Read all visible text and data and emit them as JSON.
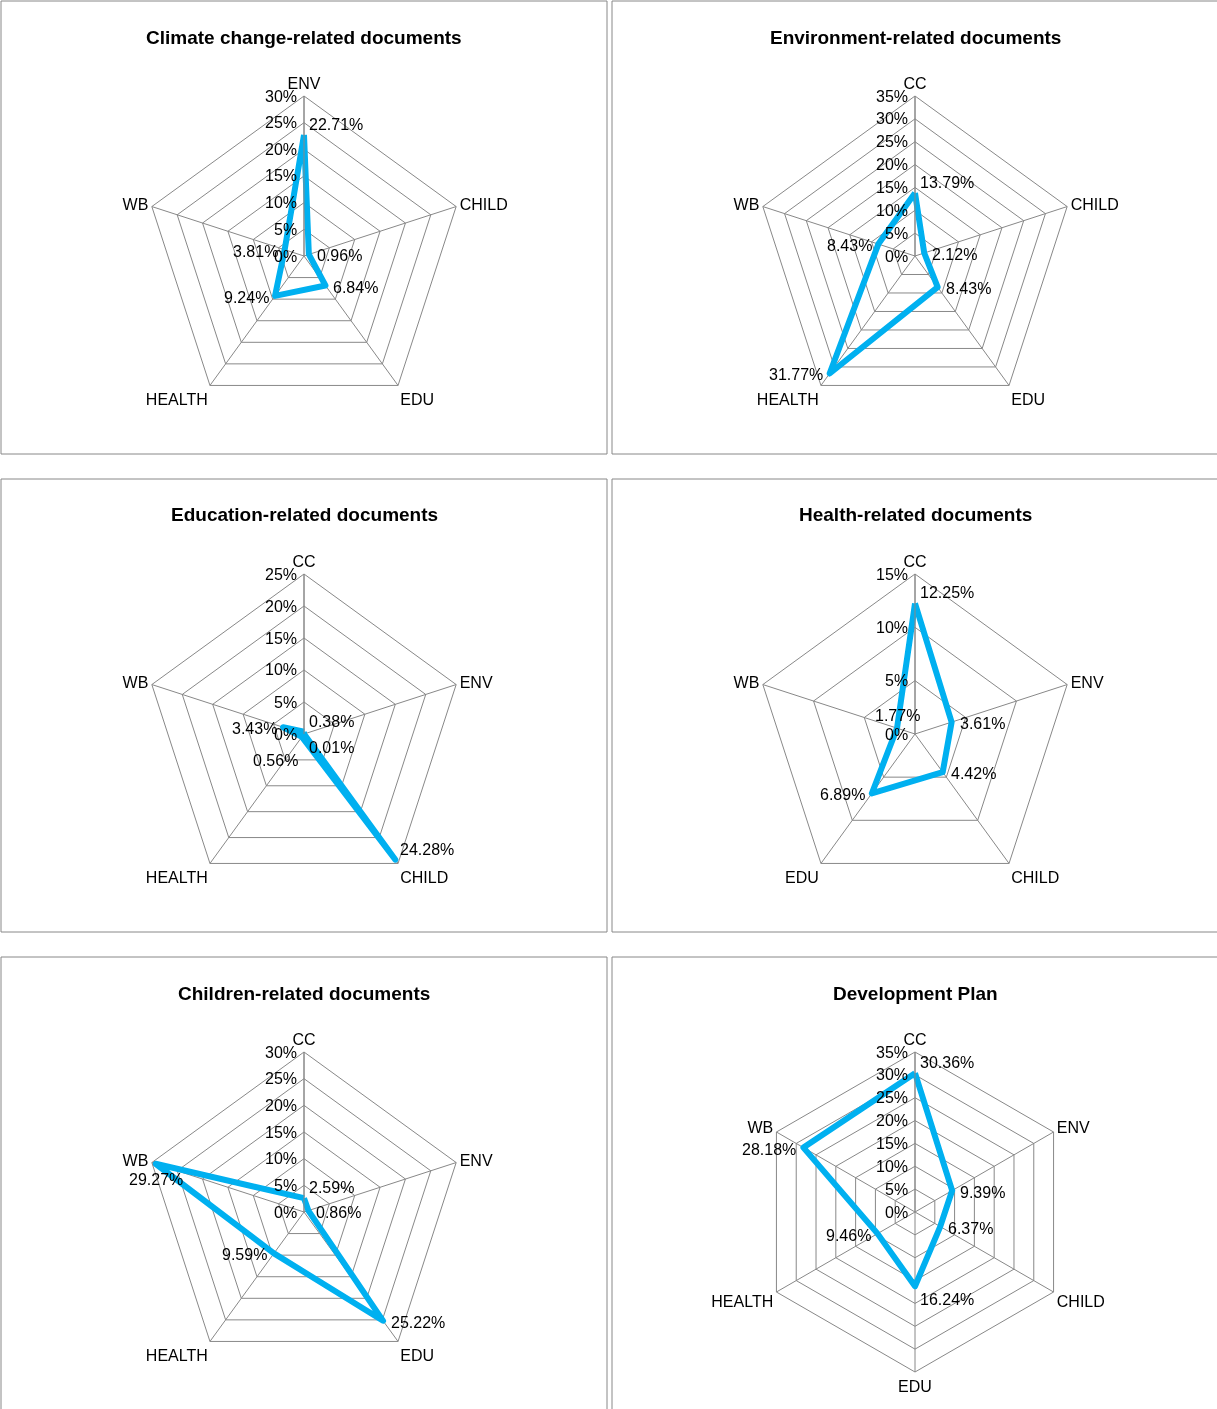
{
  "chart_data": [
    {
      "type": "radar",
      "title": "Climate change-related documents",
      "categories": [
        "ENV",
        "CHILD",
        "EDU",
        "HEALTH",
        "WB"
      ],
      "series": [
        {
          "color": "#00b0f0",
          "values": [
            22.71,
            0.96,
            6.84,
            9.24,
            3.81
          ],
          "value_labels": [
            "22.71%",
            "0.96%",
            "6.84%",
            "9.24%",
            "3.81%"
          ]
        }
      ],
      "ylim": [
        0,
        30
      ],
      "yticks": [
        {
          "value": 0,
          "label": "0%"
        },
        {
          "value": 5,
          "label": "5%"
        },
        {
          "value": 10,
          "label": "10%"
        },
        {
          "value": 15,
          "label": "15%"
        },
        {
          "value": 20,
          "label": "20%"
        },
        {
          "value": 25,
          "label": "25%"
        },
        {
          "value": 30,
          "label": "30%"
        }
      ],
      "grid": true,
      "marker": "none",
      "line_style": "solid"
    },
    {
      "type": "radar",
      "title": "Environment-related documents",
      "categories": [
        "CC",
        "CHILD",
        "EDU",
        "HEALTH",
        "WB"
      ],
      "series": [
        {
          "color": "#00b0f0",
          "values": [
            13.79,
            2.12,
            8.43,
            31.77,
            8.43
          ],
          "value_labels": [
            "13.79%",
            "2.12%",
            "8.43%",
            "31.77%",
            "8.43%"
          ]
        }
      ],
      "ylim": [
        0,
        35
      ],
      "yticks": [
        {
          "value": 0,
          "label": "0%"
        },
        {
          "value": 5,
          "label": "5%"
        },
        {
          "value": 10,
          "label": "10%"
        },
        {
          "value": 15,
          "label": "15%"
        },
        {
          "value": 20,
          "label": "20%"
        },
        {
          "value": 25,
          "label": "25%"
        },
        {
          "value": 30,
          "label": "30%"
        },
        {
          "value": 35,
          "label": "35%"
        }
      ],
      "grid": true,
      "marker": "none",
      "line_style": "solid"
    },
    {
      "type": "radar",
      "title": "Education-related documents",
      "categories": [
        "CC",
        "ENV",
        "CHILD",
        "HEALTH",
        "WB"
      ],
      "series": [
        {
          "color": "#00b0f0",
          "values": [
            0.38,
            0.01,
            24.28,
            0.56,
            3.43
          ],
          "value_labels": [
            "0.38%",
            "0.01%",
            "24.28%",
            "0.56%",
            "3.43%"
          ]
        }
      ],
      "ylim": [
        0,
        25
      ],
      "yticks": [
        {
          "value": 0,
          "label": "0%"
        },
        {
          "value": 5,
          "label": "5%"
        },
        {
          "value": 10,
          "label": "10%"
        },
        {
          "value": 15,
          "label": "15%"
        },
        {
          "value": 20,
          "label": "20%"
        },
        {
          "value": 25,
          "label": "25%"
        }
      ],
      "grid": true,
      "marker": "none",
      "line_style": "solid"
    },
    {
      "type": "radar",
      "title": "Health-related documents",
      "categories": [
        "CC",
        "ENV",
        "CHILD",
        "EDU",
        "WB"
      ],
      "series": [
        {
          "color": "#00b0f0",
          "values": [
            12.25,
            3.61,
            4.42,
            6.89,
            1.77
          ],
          "value_labels": [
            "12.25%",
            "3.61%",
            "4.42%",
            "6.89%",
            "1.77%"
          ]
        }
      ],
      "ylim": [
        0,
        15
      ],
      "yticks": [
        {
          "value": 0,
          "label": "0%"
        },
        {
          "value": 5,
          "label": "5%"
        },
        {
          "value": 10,
          "label": "10%"
        },
        {
          "value": 15,
          "label": "15%"
        }
      ],
      "grid": true,
      "marker": "none",
      "line_style": "solid"
    },
    {
      "type": "radar",
      "title": "Children-related documents",
      "categories": [
        "CC",
        "ENV",
        "EDU",
        "HEALTH",
        "WB"
      ],
      "series": [
        {
          "color": "#00b0f0",
          "values": [
            2.59,
            0.86,
            25.22,
            9.59,
            29.27
          ],
          "value_labels": [
            "2.59%",
            "0.86%",
            "25.22%",
            "9.59%",
            "29.27%"
          ]
        }
      ],
      "ylim": [
        0,
        30
      ],
      "yticks": [
        {
          "value": 0,
          "label": "0%"
        },
        {
          "value": 5,
          "label": "5%"
        },
        {
          "value": 10,
          "label": "10%"
        },
        {
          "value": 15,
          "label": "15%"
        },
        {
          "value": 20,
          "label": "20%"
        },
        {
          "value": 25,
          "label": "25%"
        },
        {
          "value": 30,
          "label": "30%"
        }
      ],
      "grid": true,
      "marker": "none",
      "line_style": "solid"
    },
    {
      "type": "radar",
      "title": "Development Plan",
      "categories": [
        "CC",
        "ENV",
        "CHILD",
        "EDU",
        "HEALTH",
        "WB"
      ],
      "series": [
        {
          "color": "#00b0f0",
          "values": [
            30.36,
            9.39,
            6.37,
            16.24,
            9.46,
            28.18
          ],
          "value_labels": [
            "30.36%",
            "9.39%",
            "6.37%",
            "16.24%",
            "9.46%",
            "28.18%"
          ]
        }
      ],
      "ylim": [
        0,
        35
      ],
      "yticks": [
        {
          "value": 0,
          "label": "0%"
        },
        {
          "value": 5,
          "label": "5%"
        },
        {
          "value": 10,
          "label": "10%"
        },
        {
          "value": 15,
          "label": "15%"
        },
        {
          "value": 20,
          "label": "20%"
        },
        {
          "value": 25,
          "label": "25%"
        },
        {
          "value": 30,
          "label": "30%"
        },
        {
          "value": 35,
          "label": "35%"
        }
      ],
      "grid": true,
      "marker": "none",
      "line_style": "solid"
    }
  ]
}
